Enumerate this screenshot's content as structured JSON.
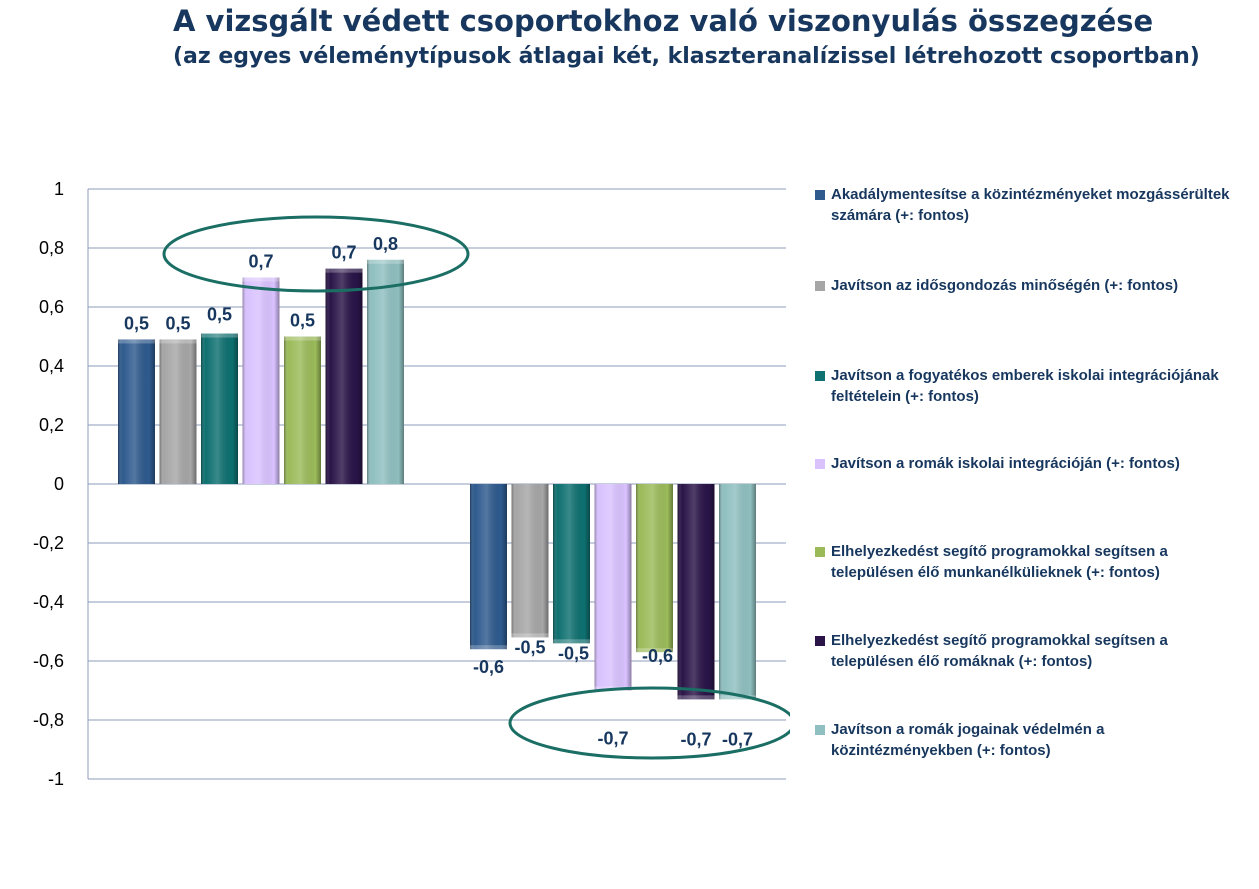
{
  "title": "A vizsgált védett csoportokhoz való viszonyulás összegzése",
  "subtitle": "(az egyes véleménytípusok átlagai két, klaszteranalízissel létrehozott csoportban)",
  "chart_data": {
    "type": "bar",
    "categories": [
      "",
      ""
    ],
    "ylim": [
      -1,
      1
    ],
    "yticks": [
      "1",
      "0,8",
      "0,6",
      "0,4",
      "0,2",
      "0",
      "-0,2",
      "-0,4",
      "-0,6",
      "-0,8",
      "-1"
    ],
    "ytick_values": [
      1,
      0.8,
      0.6,
      0.4,
      0.2,
      0,
      -0.2,
      -0.4,
      -0.6,
      -0.8,
      -1
    ],
    "grid": true,
    "legend_position": "right",
    "series": [
      {
        "name": "Akadálymentesítse a közintézményeket mozgássérültek számára (+: fontos)",
        "color": "#2E5A8E",
        "values": [
          0.49,
          -0.56
        ],
        "labels": [
          "0,5",
          "-0,6"
        ]
      },
      {
        "name": "Javítson az idősgondozás minőségén (+: fontos)",
        "color": "#A6A6A6",
        "values": [
          0.49,
          -0.52
        ],
        "labels": [
          "0,5",
          "-0,5"
        ]
      },
      {
        "name": "Javítson a fogyatékos emberek iskolai integrációjának feltételein (+: fontos)",
        "color": "#0E7070",
        "values": [
          0.51,
          -0.54
        ],
        "labels": [
          "0,5",
          "-0,5"
        ]
      },
      {
        "name": "Javítson a romák iskolai integrációján (+: fontos)",
        "color": "#D9C2FF",
        "values": [
          0.7,
          -0.7
        ],
        "labels": [
          "0,7",
          "-0,7"
        ]
      },
      {
        "name": "Elhelyezkedést segítő programokkal segítsen a településen élő munkanélkülieknek (+: fontos)",
        "color": "#9BBB59",
        "values": [
          0.5,
          -0.57
        ],
        "labels": [
          "0,5",
          "-0,6"
        ]
      },
      {
        "name": "Elhelyezkedést segítő programokkal segítsen a településen élő romáknak (+: fontos)",
        "color": "#2A1448",
        "values": [
          0.73,
          -0.73
        ],
        "labels": [
          "0,7",
          "-0,7"
        ]
      },
      {
        "name": "Javítson a romák jogainak védelmén a közintézményekben (+: fontos)",
        "color": "#8FBFC0",
        "values": [
          0.76,
          -0.73
        ],
        "labels": [
          "0,8",
          "-0,7"
        ]
      }
    ],
    "highlight_color": "#1A6E64"
  }
}
